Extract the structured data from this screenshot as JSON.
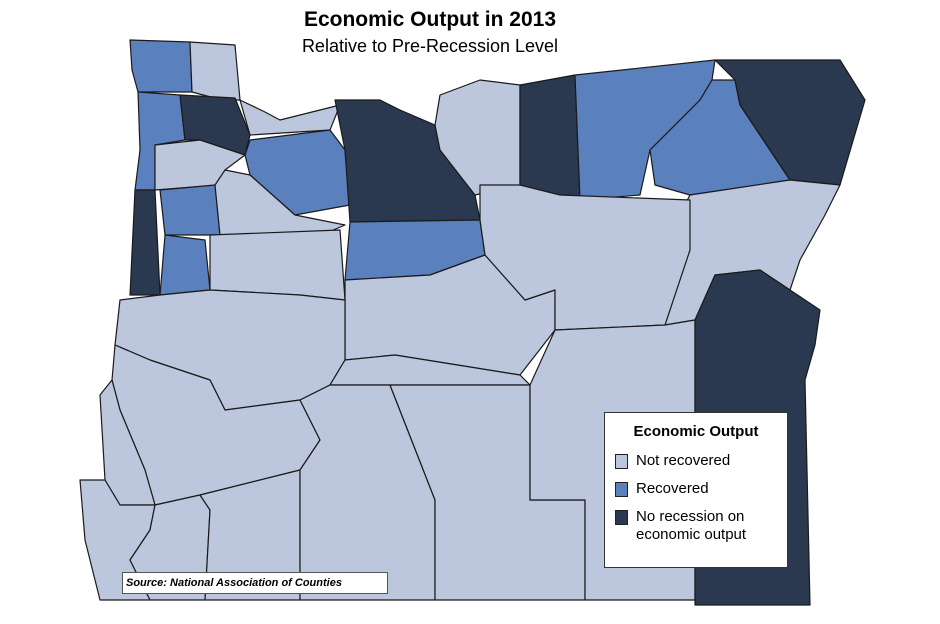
{
  "header": {
    "title": "Economic Output in 2013",
    "subtitle": "Relative to Pre-Recession Level"
  },
  "legend": {
    "title": "Economic Output",
    "items": [
      {
        "label": "Not recovered",
        "color": "#bcc6dc"
      },
      {
        "label": "Recovered",
        "color": "#5a80bd"
      },
      {
        "label": "No recession on economic output",
        "color": "#2b3950"
      }
    ]
  },
  "source": "Source: National Association of Counties"
}
